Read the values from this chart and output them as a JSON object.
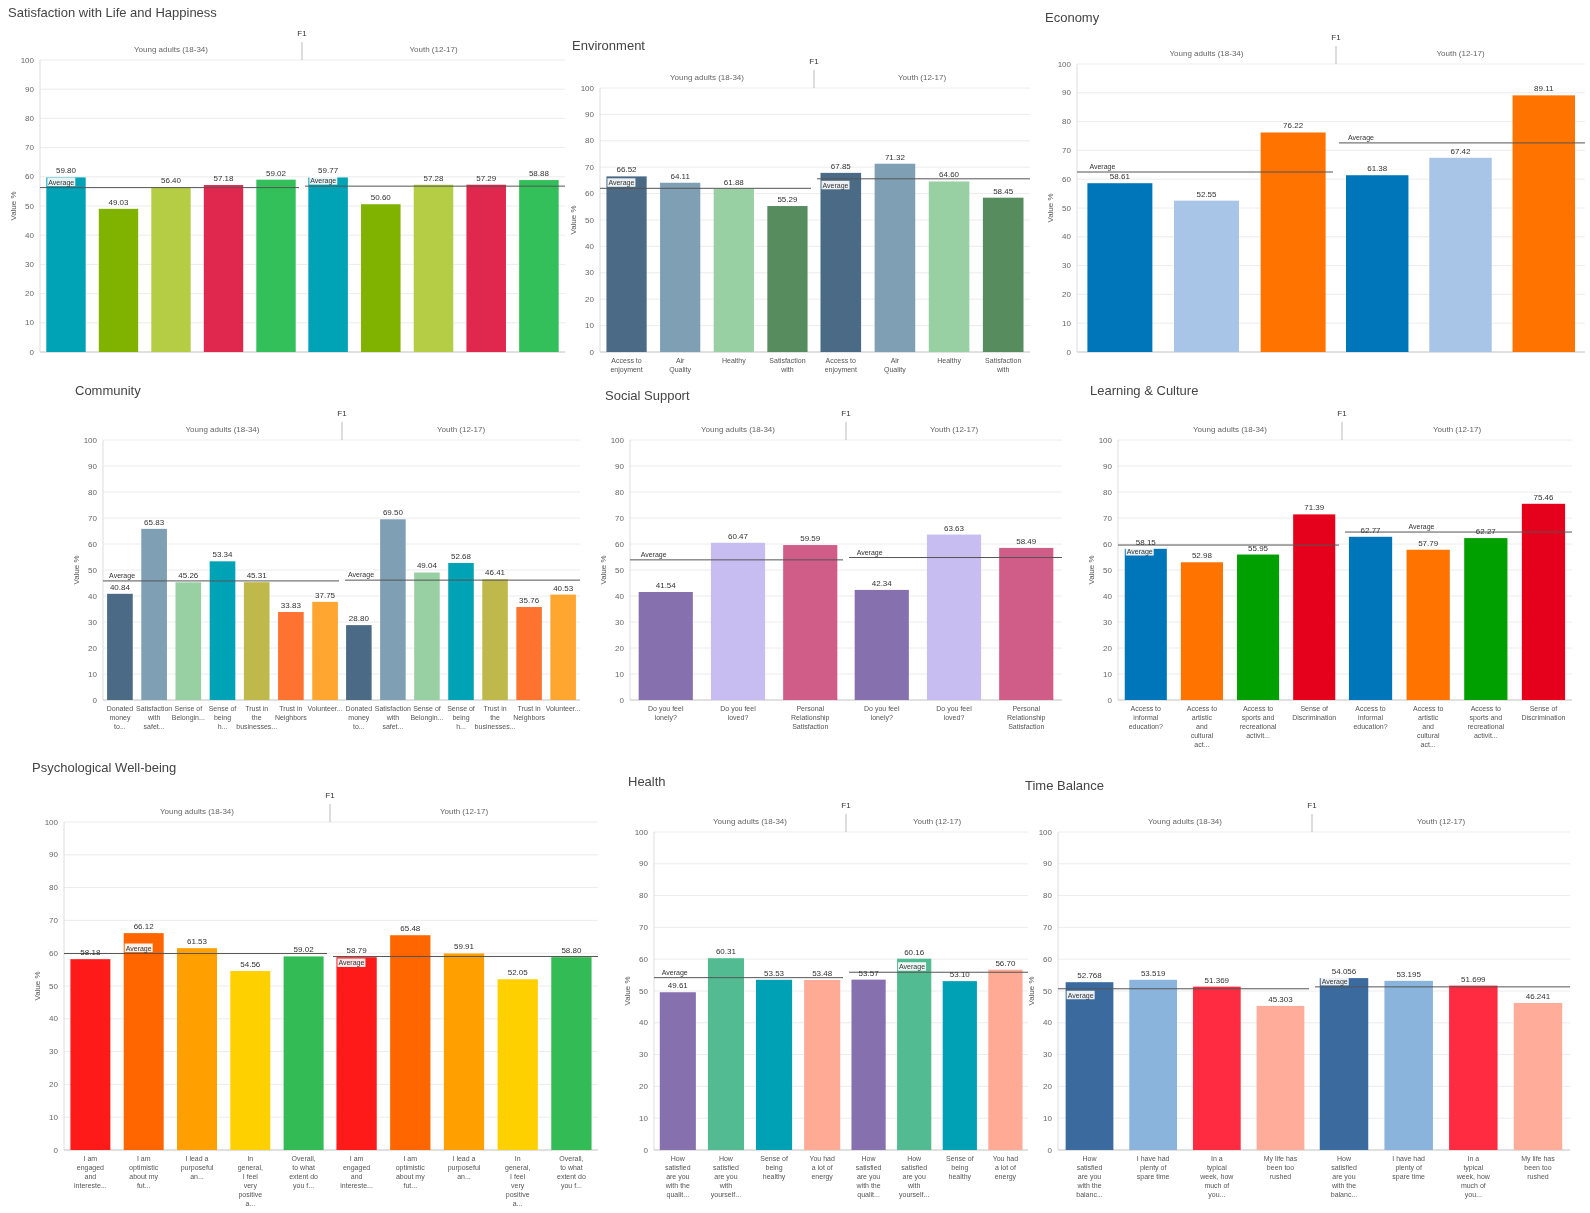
{
  "chart_data": [
    {
      "type": "bar",
      "title": "Satisfaction with Life and Happiness",
      "ylabel": "Value %",
      "annotations": [
        "F1",
        "Young adults (18-34)",
        "Youth (12-17)"
      ],
      "categories": [
        null,
        null,
        null,
        null,
        null,
        null,
        null,
        null,
        null,
        null
      ],
      "values": [
        59.8,
        49.03,
        56.4,
        57.18,
        59.02,
        59.77,
        50.6,
        57.28,
        57.29,
        58.88
      ],
      "value_labels": [
        "59.80",
        "49.03",
        "56.40",
        "57.18",
        "59.02",
        "59.77",
        "50.60",
        "57.28",
        "57.29",
        "58.88"
      ],
      "colors": [
        "#00a2b5",
        "#80b300",
        "#b5cc45",
        "#e0284e",
        "#33bf5a",
        "#00a2b5",
        "#80b300",
        "#b5cc45",
        "#e0284e",
        "#33bf5a"
      ],
      "ylim": [
        0,
        100
      ],
      "yticks": [
        0,
        10,
        20,
        30,
        40,
        50,
        60,
        70,
        80,
        90,
        100
      ],
      "grid": "y",
      "ref_lines": [
        {
          "axis": "y",
          "value": 56.3,
          "label": "Average"
        },
        {
          "axis": "y",
          "value": 56.8,
          "label": "Average"
        }
      ]
    },
    {
      "type": "bar",
      "title": "Environment",
      "ylabel": "Value %",
      "annotations": [
        "F1",
        "Young adults (18-34)",
        "Youth (12-17)"
      ],
      "categories": [
        "Access to enjoyment",
        "Air Quality",
        "Healthy",
        "Satisfaction with",
        "Access to enjoyment",
        "Air Quality",
        "Healthy",
        "Satisfaction with"
      ],
      "values": [
        66.52,
        64.11,
        61.88,
        55.29,
        67.85,
        71.32,
        64.6,
        58.45
      ],
      "value_labels": [
        "66.52",
        "64.11",
        "61.88",
        "55.29",
        "67.85",
        "71.32",
        "64.60",
        "58.45"
      ],
      "colors": [
        "#4a6a85",
        "#7f9fb5",
        "#98d0a4",
        "#578c5e",
        "#4a6a85",
        "#7f9fb5",
        "#98d0a4",
        "#578c5e"
      ],
      "ylim": [
        0,
        100
      ],
      "yticks": [
        0,
        10,
        20,
        30,
        40,
        50,
        60,
        70,
        80,
        90,
        100
      ],
      "grid": "y",
      "ref_lines": [
        {
          "axis": "y",
          "value": 62,
          "label": "Average"
        },
        {
          "axis": "y",
          "value": 65.6,
          "label": "Average"
        }
      ]
    },
    {
      "type": "bar",
      "title": "Economy",
      "ylabel": "Value %",
      "annotations": [
        "F1",
        "Young adults (18-34)",
        "Youth (12-17)"
      ],
      "categories": [
        null,
        null,
        null,
        null,
        null,
        null
      ],
      "values": [
        58.61,
        52.55,
        76.22,
        61.38,
        67.42,
        89.11
      ],
      "value_labels": [
        "58.61",
        "52.55",
        "76.22",
        "61.38",
        "67.42",
        "89.11"
      ],
      "colors": [
        "#0076ba",
        "#a8c5e8",
        "#ff7300",
        "#0076ba",
        "#a8c5e8",
        "#ff7300"
      ],
      "ylim": [
        0,
        100
      ],
      "yticks": [
        0,
        10,
        20,
        30,
        40,
        50,
        60,
        70,
        80,
        90,
        100
      ],
      "grid": "y",
      "ref_lines": [
        {
          "axis": "y",
          "value": 62.5,
          "label": "Average"
        },
        {
          "axis": "y",
          "value": 72.6,
          "label": "Average"
        }
      ]
    },
    {
      "type": "bar",
      "title": "Community",
      "ylabel": "Value %",
      "annotations": [
        "F1",
        "Young adults (18-34)",
        "Youth (12-17)"
      ],
      "categories": [
        "Donated money to...",
        "Satisfaction with safet...",
        "Sense of Belongin...",
        "Sense of being h...",
        "Trust in the businesses...",
        "Trust in Neighbors",
        "Volunteer...",
        "Donated money to...",
        "Satisfaction with safet...",
        "Sense of Belongin...",
        "Sense of being h...",
        "Trust in the businesses...",
        "Trust in Neighbors",
        "Volunteer..."
      ],
      "values": [
        40.84,
        65.83,
        45.26,
        53.34,
        45.31,
        33.83,
        37.75,
        28.8,
        69.5,
        49.04,
        52.68,
        46.41,
        35.76,
        40.53
      ],
      "value_labels": [
        "40.84",
        "65.83",
        "45.26",
        "53.34",
        "45.31",
        "33.83",
        "37.75",
        "28.80",
        "69.50",
        "49.04",
        "52.68",
        "46.41",
        "35.76",
        "40.53"
      ],
      "colors": [
        "#4a6a85",
        "#7f9fb5",
        "#98d0a4",
        "#00a2b5",
        "#bfb84a",
        "#ff7330",
        "#ffa630",
        "#4a6a85",
        "#7f9fb5",
        "#98d0a4",
        "#00a2b5",
        "#bfb84a",
        "#ff7330",
        "#ffa630"
      ],
      "ylim": [
        0,
        100
      ],
      "yticks": [
        0,
        10,
        20,
        30,
        40,
        50,
        60,
        70,
        80,
        90,
        100
      ],
      "grid": "y",
      "ref_lines": [
        {
          "axis": "y",
          "value": 45.8,
          "label": "Average"
        },
        {
          "axis": "y",
          "value": 46.1,
          "label": "Average"
        }
      ]
    },
    {
      "type": "bar",
      "title": "Social Support",
      "ylabel": "Value %",
      "annotations": [
        "F1",
        "Young adults (18-34)",
        "Youth (12-17)"
      ],
      "categories": [
        "Do you feel lonely?",
        "Do you feel loved?",
        "Personal Relationship Satisfaction",
        "Do you feel lonely?",
        "Do you feel loved?",
        "Personal Relationship Satisfaction"
      ],
      "values": [
        41.54,
        60.47,
        59.59,
        42.34,
        63.63,
        58.49
      ],
      "value_labels": [
        "41.54",
        "60.47",
        "59.59",
        "42.34",
        "63.63",
        "58.49"
      ],
      "colors": [
        "#8770ae",
        "#c7bdf0",
        "#d05c88",
        "#8770ae",
        "#c7bdf0",
        "#d05c88"
      ],
      "ylim": [
        0,
        100
      ],
      "yticks": [
        0,
        10,
        20,
        30,
        40,
        50,
        60,
        70,
        80,
        90,
        100
      ],
      "grid": "y",
      "ref_lines": [
        {
          "axis": "y",
          "value": 53.9,
          "label": "Average"
        },
        {
          "axis": "y",
          "value": 54.8,
          "label": "Average"
        }
      ]
    },
    {
      "type": "bar",
      "title": "Learning & Culture",
      "ylabel": "Value %",
      "annotations": [
        "F1",
        "Young adults (18-34)",
        "Youth (12-17)"
      ],
      "categories": [
        "Access to informal education?",
        "Access to artistic and cultural act...",
        "Access to sports and recreational activit...",
        "Sense of Discrimination",
        "Access to informal education?",
        "Access to artistic and cultural act...",
        "Access to sports and recreational activit...",
        "Sense of Discrimination"
      ],
      "values": [
        58.15,
        52.98,
        55.95,
        71.39,
        62.77,
        57.79,
        62.27,
        75.46
      ],
      "value_labels": [
        "58.15",
        "52.98",
        "55.95",
        "71.39",
        "62.77",
        "57.79",
        "62.27",
        "75.46"
      ],
      "colors": [
        "#0076ba",
        "#ff7300",
        "#00a000",
        "#e5001c",
        "#0076ba",
        "#ff7300",
        "#00a000",
        "#e5001c"
      ],
      "ylim": [
        0,
        100
      ],
      "yticks": [
        0,
        10,
        20,
        30,
        40,
        50,
        60,
        70,
        80,
        90,
        100
      ],
      "grid": "y",
      "ref_lines": [
        {
          "axis": "y",
          "value": 59.6,
          "label": "Average"
        },
        {
          "axis": "y",
          "value": 64.6,
          "label": "Average"
        }
      ]
    },
    {
      "type": "bar",
      "title": "Psychological Well-being",
      "ylabel": "Value %",
      "annotations": [
        "F1",
        "Young adults (18-34)",
        "Youth (12-17)"
      ],
      "categories": [
        "I am engaged and intereste...",
        "I am optimistic about my fut...",
        "I lead a purposeful an...",
        "In general, I feel very positive a...",
        "Overall, to what extent do you f...",
        "I am engaged and intereste...",
        "I am optimistic about my fut...",
        "I lead a purposeful an...",
        "In general, I feel very positive a...",
        "Overall, to what extent do you f..."
      ],
      "values": [
        58.18,
        66.12,
        61.53,
        54.56,
        59.02,
        58.79,
        65.48,
        59.91,
        52.05,
        58.8
      ],
      "value_labels": [
        "58.18",
        "66.12",
        "61.53",
        "54.56",
        "59.02",
        "58.79",
        "65.48",
        "59.91",
        "52.05",
        "58.80"
      ],
      "colors": [
        "#ff1a1a",
        "#ff6600",
        "#ffa000",
        "#ffd000",
        "#33bb55",
        "#ff1a1a",
        "#ff6600",
        "#ffa000",
        "#ffd000",
        "#33bb55"
      ],
      "ylim": [
        0,
        100
      ],
      "yticks": [
        0,
        10,
        20,
        30,
        40,
        50,
        60,
        70,
        80,
        90,
        100
      ],
      "grid": "y",
      "ref_lines": [
        {
          "axis": "y",
          "value": 59.9,
          "label": "Average"
        },
        {
          "axis": "y",
          "value": 59,
          "label": "Average"
        }
      ]
    },
    {
      "type": "bar",
      "title": "Health",
      "ylabel": "Value %",
      "annotations": [
        "F1",
        "Young adults (18-34)",
        "Youth (12-17)"
      ],
      "categories": [
        "How satisfied are you with the qualit...",
        "How satisfied are you with yourself...",
        "Sense of being healthy",
        "You had a lot of energy",
        "How satisfied are you with the qualit...",
        "How satisfied are you with yourself...",
        "Sense of being healthy",
        "You had a lot of energy"
      ],
      "values": [
        49.61,
        60.31,
        53.53,
        53.48,
        53.57,
        60.16,
        53.1,
        56.7
      ],
      "value_labels": [
        "49.61",
        "60.31",
        "53.53",
        "53.48",
        "53.57",
        "60.16",
        "53.10",
        "56.70"
      ],
      "colors": [
        "#8770ae",
        "#52bb92",
        "#00a0b5",
        "#ffaa95",
        "#8770ae",
        "#52bb92",
        "#00a0b5",
        "#ffaa95"
      ],
      "ylim": [
        0,
        100
      ],
      "yticks": [
        0,
        10,
        20,
        30,
        40,
        50,
        60,
        70,
        80,
        90,
        100
      ],
      "grid": "y",
      "ref_lines": [
        {
          "axis": "y",
          "value": 54.2,
          "label": "Average"
        },
        {
          "axis": "y",
          "value": 55.9,
          "label": "Average"
        }
      ]
    },
    {
      "type": "bar",
      "title": "Time Balance",
      "ylabel": "Value %",
      "annotations": [
        "F1",
        "Young adults (18-34)",
        "Youth (12-17)"
      ],
      "categories": [
        "How satisfied are you with the balanc...",
        "I have had plenty of spare time",
        "In a typical week, how much of you...",
        "My life has been too rushed",
        "How satisfied are you with the balanc...",
        "I have had plenty of spare time",
        "In a typical week, how much of you...",
        "My life has been too rushed"
      ],
      "values": [
        52.768,
        53.519,
        51.369,
        45.303,
        54.056,
        53.195,
        51.699,
        46.241
      ],
      "value_labels": [
        "52.768",
        "53.519",
        "51.369",
        "45.303",
        "54.056",
        "53.195",
        "51.699",
        "46.241"
      ],
      "colors": [
        "#3a6a9e",
        "#8ab4dc",
        "#ff2b40",
        "#ffad9a",
        "#3a6a9e",
        "#8ab4dc",
        "#ff2b40",
        "#ffad9a"
      ],
      "ylim": [
        0,
        100
      ],
      "yticks": [
        0,
        10,
        20,
        30,
        40,
        50,
        60,
        70,
        80,
        90,
        100
      ],
      "grid": "y",
      "ref_lines": [
        {
          "axis": "y",
          "value": 50.7,
          "label": "Average"
        },
        {
          "axis": "y",
          "value": 51.3,
          "label": "Average"
        }
      ]
    }
  ]
}
